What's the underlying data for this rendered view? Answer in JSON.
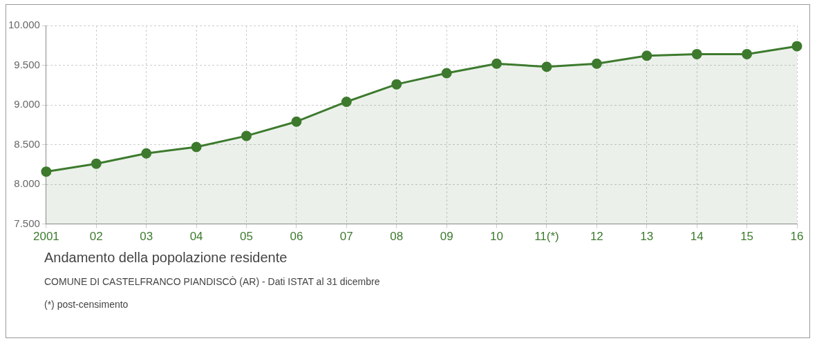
{
  "chart_data": {
    "type": "area",
    "title": "Andamento della popolazione residente",
    "subtitle": "COMUNE DI CASTELFRANCO PIANDISCÒ (AR) - Dati ISTAT al 31 dicembre",
    "annotations": [
      "(*) post-censimento"
    ],
    "categories": [
      "2001",
      "02",
      "03",
      "04",
      "05",
      "06",
      "07",
      "08",
      "09",
      "10",
      "11(*)",
      "12",
      "13",
      "14",
      "15",
      "16"
    ],
    "series": [
      {
        "color": "#3d7a2e",
        "values": [
          8160,
          8260,
          8390,
          8470,
          8610,
          8790,
          9040,
          9260,
          9400,
          9520,
          9480,
          9520,
          9620,
          9640,
          9640,
          9740
        ]
      }
    ],
    "ylim": [
      7500,
      10000
    ],
    "yticks": [
      {
        "value": 7500,
        "label": "7.500"
      },
      {
        "value": 8000,
        "label": "8.000"
      },
      {
        "value": 8500,
        "label": "8.500"
      },
      {
        "value": 9000,
        "label": "9.000"
      },
      {
        "value": 9500,
        "label": "9.500"
      },
      {
        "value": 10000,
        "label": "10.000"
      }
    ],
    "grid": true,
    "marker": "circle",
    "legend": false
  }
}
